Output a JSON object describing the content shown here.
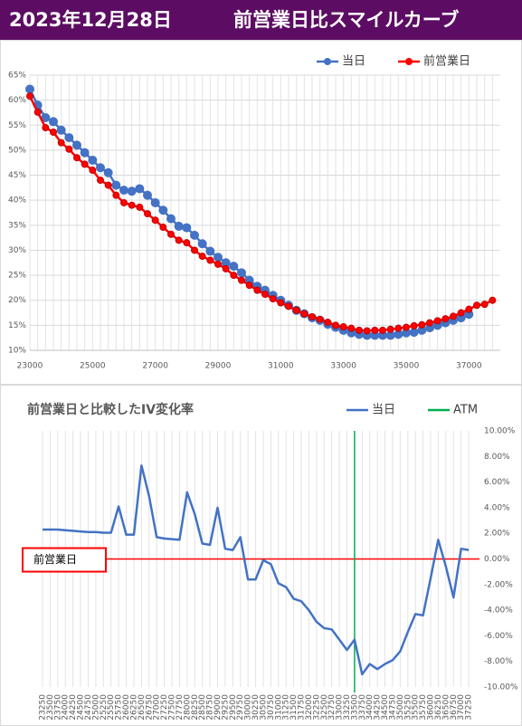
{
  "header": {
    "date": "2023年12月28日",
    "title": "前営業日比スマイルカーブ"
  },
  "chart_data": [
    {
      "type": "line",
      "legend": "top-right",
      "grid": true,
      "yaxis_side": "left",
      "x": [
        23000,
        23250,
        23500,
        23750,
        24000,
        24250,
        24500,
        24750,
        25000,
        25250,
        25500,
        25750,
        26000,
        26250,
        26500,
        26750,
        27000,
        27250,
        27500,
        27750,
        28000,
        28250,
        28500,
        28750,
        29000,
        29250,
        29500,
        29750,
        30000,
        30250,
        30500,
        30750,
        31000,
        31250,
        31500,
        31750,
        32000,
        32250,
        32500,
        32750,
        33000,
        33250,
        33500,
        33750,
        34000,
        34250,
        34500,
        34750,
        35000,
        35250,
        35500,
        35750,
        36000,
        36250,
        36500,
        36750,
        37000,
        37250,
        37500,
        37750
      ],
      "xlim": [
        23000,
        38000
      ],
      "xticks": [
        23000,
        25000,
        27000,
        29000,
        31000,
        33000,
        35000,
        37000
      ],
      "ylim": [
        10,
        65
      ],
      "yticks": [
        {
          "value": 10,
          "label": "10%"
        },
        {
          "value": 15,
          "label": "15%"
        },
        {
          "value": 20,
          "label": "20%"
        },
        {
          "value": 25,
          "label": "25%"
        },
        {
          "value": 30,
          "label": "30%"
        },
        {
          "value": 35,
          "label": "35%"
        },
        {
          "value": 40,
          "label": "40%"
        },
        {
          "value": 45,
          "label": "45%"
        },
        {
          "value": 50,
          "label": "50%"
        },
        {
          "value": 55,
          "label": "55%"
        },
        {
          "value": 60,
          "label": "60%"
        },
        {
          "value": 65,
          "label": "65%"
        }
      ],
      "series": [
        {
          "name": "当日",
          "color": "#4472c4",
          "markers": true,
          "values": [
            62.2,
            59.0,
            56.5,
            55.7,
            54.0,
            52.5,
            51.0,
            49.5,
            48.0,
            46.5,
            45.5,
            43.0,
            42.0,
            41.8,
            42.3,
            41.0,
            39.5,
            38.0,
            36.3,
            34.8,
            34.5,
            33.0,
            31.3,
            29.8,
            28.6,
            27.5,
            26.8,
            25.5,
            24.0,
            22.8,
            22.0,
            21.0,
            20.0,
            19.0,
            18.0,
            17.3,
            16.5,
            16.0,
            15.2,
            14.6,
            14.0,
            13.5,
            13.2,
            13.0,
            13.0,
            13.0,
            13.0,
            13.2,
            13.5,
            13.6,
            14.0,
            14.5,
            15.0,
            15.5,
            16.0,
            16.5,
            17.2,
            null,
            null,
            null
          ]
        },
        {
          "name": "前営業日",
          "color": "#ff0000",
          "markers": true,
          "values": [
            60.8,
            57.6,
            54.5,
            53.6,
            51.5,
            50.2,
            48.5,
            47.2,
            46.0,
            44.0,
            43.0,
            41.0,
            39.5,
            39.0,
            38.6,
            37.3,
            36.0,
            34.6,
            33.2,
            32.0,
            31.5,
            30.0,
            28.8,
            28.0,
            27.2,
            26.3,
            25.0,
            24.0,
            23.0,
            22.0,
            21.2,
            20.3,
            19.5,
            18.8,
            18.0,
            17.3,
            16.7,
            16.2,
            15.6,
            15.0,
            14.7,
            14.4,
            14.0,
            13.9,
            14.0,
            14.0,
            14.2,
            14.4,
            14.6,
            14.9,
            15.1,
            15.5,
            15.9,
            16.3,
            16.8,
            17.5,
            18.2,
            19.0,
            19.2,
            20.0
          ]
        }
      ]
    },
    {
      "type": "line",
      "title": "前営業日と比較したIV変化率",
      "legend": "top-right",
      "grid": true,
      "yaxis_side": "right",
      "categories": [
        "23250",
        "23500",
        "23750",
        "24000",
        "24250",
        "24500",
        "24750",
        "25000",
        "25250",
        "25500",
        "25750",
        "26000",
        "26250",
        "26500",
        "26750",
        "27000",
        "27250",
        "27500",
        "27750",
        "28000",
        "28250",
        "28500",
        "28750",
        "29000",
        "29250",
        "29500",
        "29750",
        "30000",
        "30250",
        "30500",
        "30750",
        "31000",
        "31250",
        "31500",
        "31750",
        "32000",
        "32250",
        "32500",
        "32750",
        "33000",
        "33250",
        "33500",
        "33750",
        "34000",
        "34250",
        "34500",
        "34750",
        "35000",
        "35250",
        "35500",
        "35750",
        "36000",
        "36250",
        "36500",
        "36750",
        "37000",
        "37250"
      ],
      "ylim": [
        -10,
        10
      ],
      "yticks": [
        {
          "value": -10,
          "label": "-10.00%"
        },
        {
          "value": -8,
          "label": "-8.00%"
        },
        {
          "value": -6,
          "label": "-6.00%"
        },
        {
          "value": -4,
          "label": "-4.00%"
        },
        {
          "value": -2,
          "label": "-2.00%"
        },
        {
          "value": 0,
          "label": "0.00%"
        },
        {
          "value": 2,
          "label": "2.00%"
        },
        {
          "value": 4,
          "label": "4.00%"
        },
        {
          "value": 6,
          "label": "6.00%"
        },
        {
          "value": 8,
          "label": "8.00%"
        },
        {
          "value": 10,
          "label": "10.00%"
        }
      ],
      "series": [
        {
          "name": "当日",
          "color": "#4472c4",
          "values": [
            2.3,
            2.3,
            2.3,
            2.25,
            2.2,
            2.15,
            2.1,
            2.1,
            2.05,
            2.05,
            4.1,
            1.9,
            1.9,
            7.3,
            4.9,
            1.7,
            1.6,
            1.55,
            1.5,
            5.2,
            3.5,
            1.2,
            1.1,
            4.0,
            0.8,
            0.7,
            1.7,
            -1.6,
            -1.6,
            -0.1,
            -0.4,
            -1.9,
            -2.2,
            -3.1,
            -3.3,
            -4.0,
            -4.9,
            -5.4,
            -5.5,
            -6.3,
            -7.1,
            -6.3,
            -9.0,
            -8.2,
            -8.6,
            -8.2,
            -7.9,
            -7.2,
            -5.7,
            -4.3,
            -4.4,
            -1.5,
            1.5,
            -0.6,
            -3.0,
            0.8,
            0.7
          ]
        }
      ],
      "atm": {
        "name": "ATM",
        "category": "33500",
        "color": "#00b050"
      },
      "reference_line": {
        "label": "前営業日",
        "value": 0,
        "color": "#ff0000"
      }
    }
  ]
}
